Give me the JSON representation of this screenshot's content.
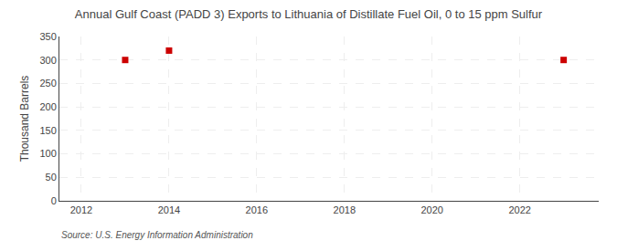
{
  "chart_data": {
    "type": "scatter",
    "title": "Annual Gulf Coast (PADD 3) Exports to Lithuania of Distillate Fuel Oil, 0 to 15 ppm Sulfur",
    "ylabel": "Thousand Barrels",
    "annotations": [
      "Source: U.S. Energy Information Administration"
    ],
    "x": [
      2013,
      2014,
      2023
    ],
    "values": [
      300,
      320,
      300
    ],
    "color": "#cc0000",
    "marker": "square",
    "xlim": [
      2011.5,
      2023.8
    ],
    "xticks": [
      2012,
      2014,
      2016,
      2018,
      2020,
      2022
    ],
    "ylim": [
      0,
      350
    ],
    "yticks": [
      0,
      50,
      100,
      150,
      200,
      250,
      300,
      350
    ],
    "grid": true
  }
}
